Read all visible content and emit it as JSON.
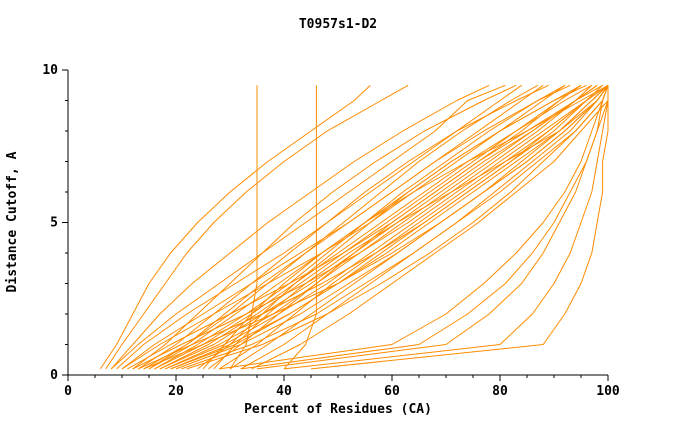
{
  "chart_data": {
    "type": "line",
    "title": "T0957s1-D2",
    "xlabel": "Percent of Residues (CA)",
    "ylabel": "Distance Cutoff, A",
    "xlim": [
      0,
      100
    ],
    "ylim": [
      0,
      10
    ],
    "x_major_ticks": [
      0,
      20,
      40,
      60,
      80,
      100
    ],
    "x_minor_step": 5,
    "y_major_ticks": [
      0,
      5,
      10
    ],
    "y_minor_step": 1,
    "grid": "off",
    "legend": "none",
    "line_color": "#ff8c00",
    "axis_color": "#000000",
    "y_levels": [
      0.2,
      1,
      2,
      3,
      4,
      5,
      6,
      7,
      8,
      9,
      9.5
    ],
    "series": [
      [
        6,
        9,
        12,
        15,
        19,
        24,
        30,
        37,
        45,
        53,
        56
      ],
      [
        7,
        10,
        14,
        18,
        22,
        27,
        33,
        40,
        48,
        58,
        63
      ],
      [
        8,
        12,
        17,
        23,
        30,
        37,
        45,
        53,
        62,
        72,
        78
      ],
      [
        8,
        13,
        20,
        28,
        36,
        44,
        52,
        60,
        68,
        74,
        81
      ],
      [
        9,
        14,
        22,
        31,
        40,
        48,
        56,
        64,
        72,
        80,
        84
      ],
      [
        10,
        16,
        25,
        34,
        43,
        52,
        60,
        68,
        76,
        84,
        88
      ],
      [
        10,
        17,
        27,
        37,
        47,
        56,
        64,
        72,
        80,
        88,
        92
      ],
      [
        11,
        19,
        30,
        41,
        51,
        60,
        68,
        76,
        84,
        91,
        95
      ],
      [
        12,
        21,
        33,
        44,
        54,
        63,
        71,
        79,
        87,
        94,
        97
      ],
      [
        13,
        23,
        36,
        47,
        57,
        66,
        74,
        82,
        90,
        96,
        99
      ],
      [
        14,
        25,
        38,
        50,
        60,
        69,
        77,
        85,
        92,
        98,
        100
      ],
      [
        15,
        22,
        30,
        37,
        44,
        51,
        58,
        65,
        73,
        82,
        87
      ],
      [
        16,
        24,
        33,
        41,
        48,
        55,
        62,
        70,
        78,
        87,
        92
      ],
      [
        17,
        26,
        35,
        43,
        51,
        59,
        67,
        75,
        83,
        91,
        95
      ],
      [
        18,
        28,
        38,
        46,
        54,
        62,
        70,
        78,
        86,
        94,
        98
      ],
      [
        19,
        30,
        41,
        50,
        58,
        66,
        74,
        82,
        89,
        96,
        100
      ],
      [
        20,
        32,
        43,
        52,
        61,
        69,
        77,
        84,
        91,
        97,
        100
      ],
      [
        21,
        34,
        46,
        55,
        64,
        72,
        79,
        86,
        93,
        98,
        100
      ],
      [
        22,
        36,
        48,
        58,
        67,
        75,
        82,
        88,
        94,
        99,
        100
      ],
      [
        24,
        30,
        36,
        42,
        49,
        56,
        63,
        71,
        80,
        90,
        95
      ],
      [
        26,
        32,
        39,
        46,
        53,
        60,
        68,
        76,
        85,
        94,
        98
      ],
      [
        28,
        35,
        42,
        49,
        57,
        65,
        73,
        81,
        89,
        96,
        100
      ],
      [
        30,
        37,
        45,
        53,
        61,
        69,
        77,
        85,
        92,
        98,
        100
      ],
      [
        32,
        40,
        48,
        56,
        64,
        72,
        80,
        87,
        94,
        99,
        100
      ],
      [
        34,
        43,
        52,
        60,
        68,
        76,
        83,
        90,
        95,
        100,
        100
      ],
      [
        25,
        29,
        34,
        40,
        47,
        55,
        64,
        74,
        85,
        95,
        100
      ],
      [
        27,
        31,
        37,
        44,
        52,
        61,
        71,
        81,
        91,
        98,
        100
      ],
      [
        12,
        18,
        24,
        30,
        36,
        42,
        49,
        57,
        66,
        77,
        83
      ],
      [
        13,
        20,
        27,
        34,
        41,
        48,
        55,
        63,
        72,
        83,
        89
      ],
      [
        14,
        22,
        29,
        36,
        44,
        52,
        60,
        68,
        77,
        87,
        93
      ],
      [
        15,
        23,
        31,
        39,
        47,
        55,
        63,
        71,
        80,
        90,
        96
      ],
      [
        16,
        25,
        34,
        42,
        50,
        58,
        66,
        74,
        83,
        92,
        97
      ],
      [
        17,
        27,
        36,
        45,
        53,
        61,
        69,
        77,
        86,
        94,
        99
      ],
      [
        18,
        29,
        39,
        48,
        56,
        64,
        72,
        80,
        88,
        96,
        100
      ],
      [
        19,
        31,
        41,
        50,
        59,
        67,
        75,
        83,
        91,
        97,
        100
      ],
      [
        35,
        70,
        78,
        84,
        88,
        91,
        94,
        96,
        98,
        99,
        100
      ],
      [
        40,
        80,
        86,
        90,
        93,
        95,
        97,
        98,
        99,
        100,
        100
      ],
      [
        45,
        88,
        92,
        95,
        97,
        98,
        99,
        99,
        100,
        100,
        100
      ],
      [
        28,
        60,
        70,
        77,
        83,
        88,
        92,
        95,
        97,
        99,
        100
      ],
      [
        32,
        65,
        74,
        81,
        86,
        90,
        93,
        96,
        98,
        100,
        100
      ],
      [
        30,
        33,
        34,
        35,
        35,
        35,
        35,
        35,
        35,
        35,
        35
      ],
      [
        40,
        44,
        46,
        46,
        46,
        46,
        46,
        46,
        46,
        46,
        46
      ]
    ]
  }
}
